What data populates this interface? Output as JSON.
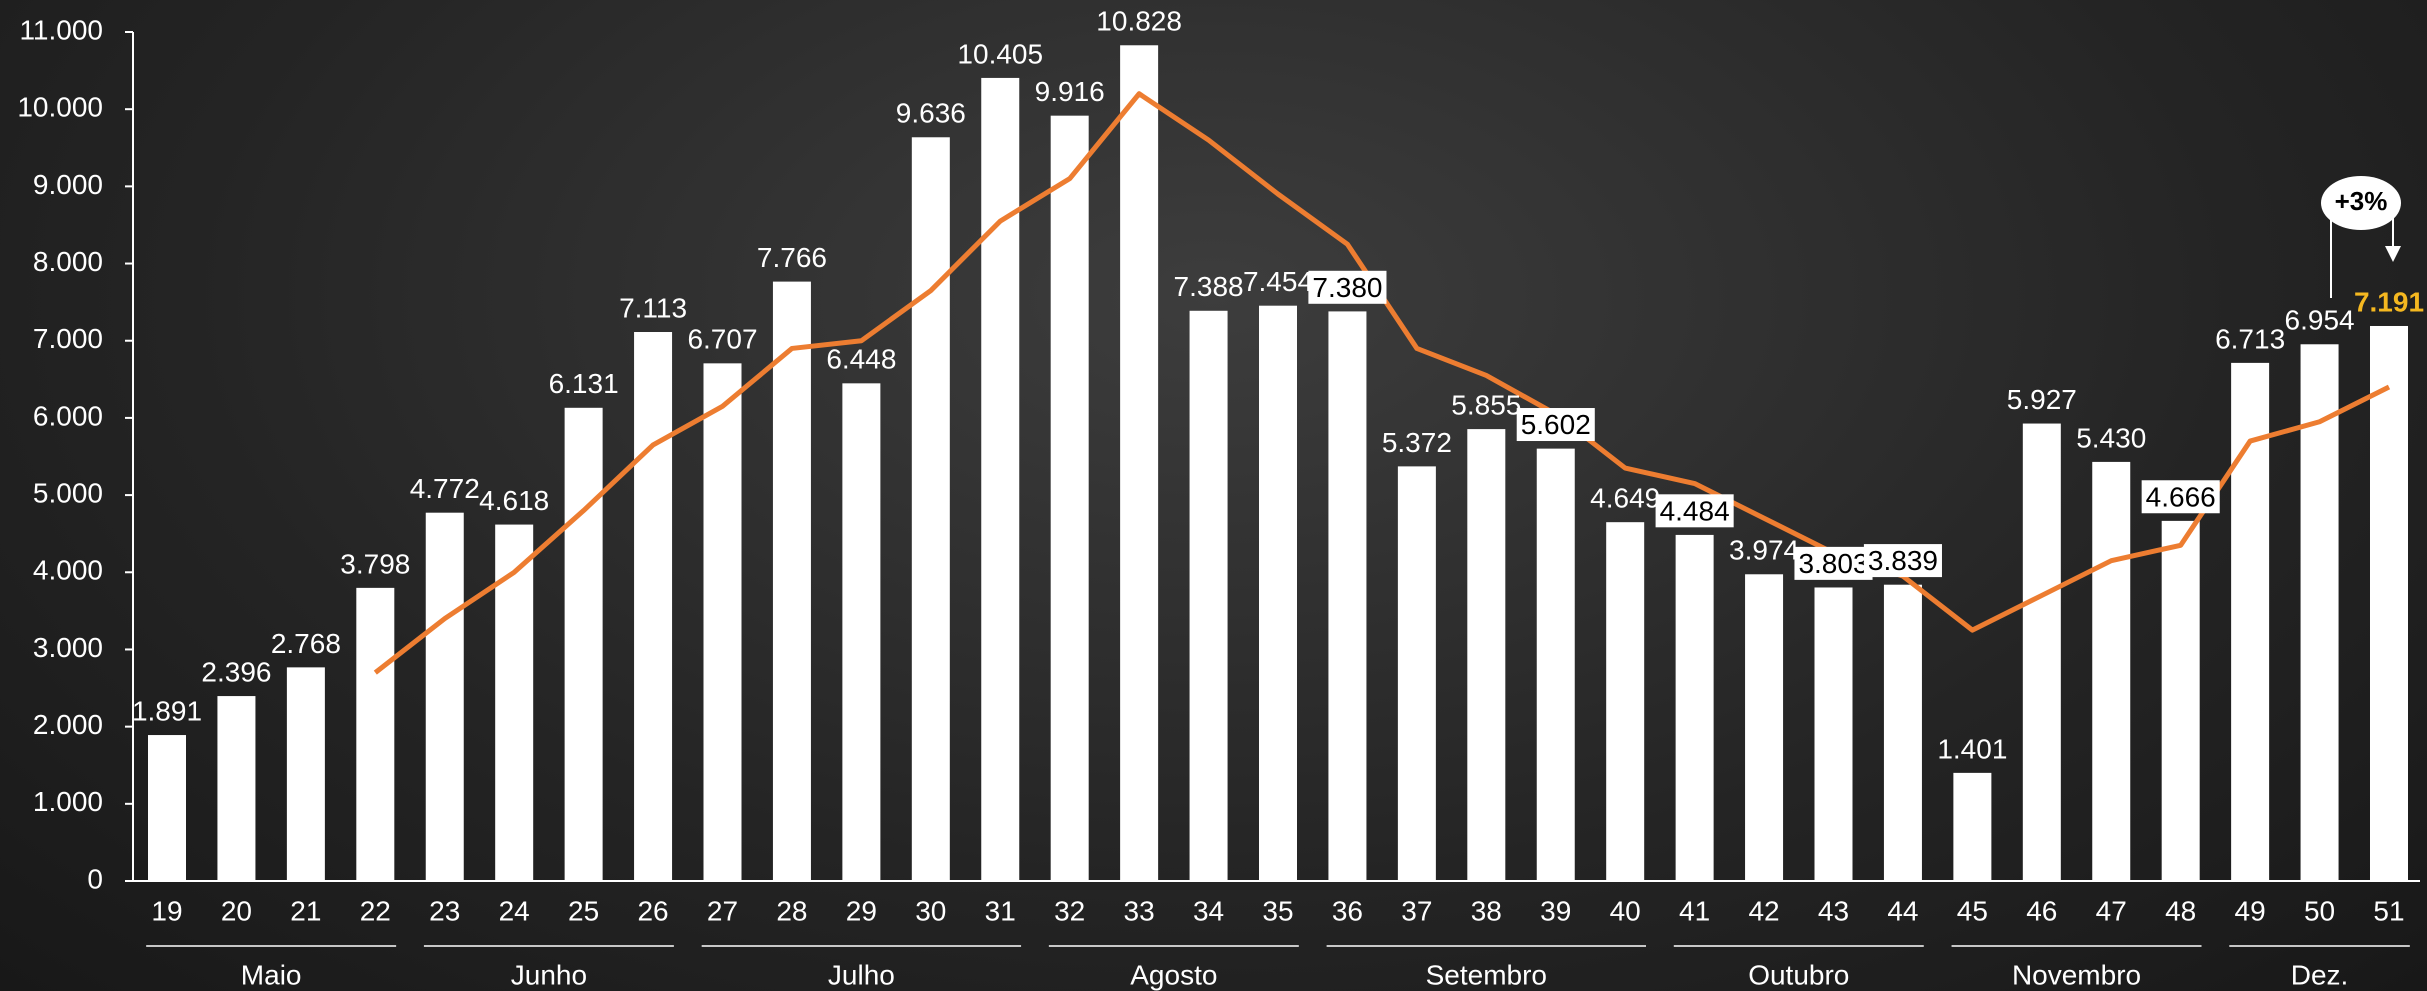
{
  "chart_data": {
    "type": "bar",
    "categories": [
      "19",
      "20",
      "21",
      "22",
      "23",
      "24",
      "25",
      "26",
      "27",
      "28",
      "29",
      "30",
      "31",
      "32",
      "33",
      "34",
      "35",
      "36",
      "37",
      "38",
      "39",
      "40",
      "41",
      "42",
      "43",
      "44",
      "45",
      "46",
      "47",
      "48",
      "49",
      "50",
      "51"
    ],
    "series": [
      {
        "type": "bar",
        "color": "#ffffff",
        "values": [
          1891,
          2396,
          2768,
          3798,
          4772,
          4618,
          6131,
          7113,
          6707,
          7766,
          6448,
          9636,
          10405,
          9916,
          10828,
          7388,
          7454,
          7380,
          5372,
          5855,
          5602,
          4649,
          4484,
          3974,
          3803,
          3839,
          1401,
          5927,
          5430,
          4666,
          6713,
          6954,
          7191
        ],
        "value_labels": [
          "1.891",
          "2.396",
          "2.768",
          "3.798",
          "4.772",
          "4.618",
          "6.131",
          "7.113",
          "6.707",
          "7.766",
          "6.448",
          "9.636",
          "10.405",
          "9.916",
          "10.828",
          "7.388",
          "7.454",
          "7.380",
          "5.372",
          "5.855",
          "5.602",
          "4.649",
          "4.484",
          "3.974",
          "3.803",
          "3.839",
          "1.401",
          "5.927",
          "5.430",
          "4.666",
          "6.713",
          "6.954",
          "7.191"
        ]
      },
      {
        "type": "line",
        "color": "#ed7d31",
        "values": [
          null,
          null,
          null,
          2700,
          3400,
          4000,
          4800,
          5650,
          6150,
          6900,
          7000,
          7650,
          8550,
          9100,
          10200,
          9600,
          8900,
          8250,
          6900,
          6550,
          6050,
          5350,
          5150,
          4700,
          4250,
          3950,
          3250,
          3700,
          4150,
          4350,
          5700,
          5950,
          6400
        ]
      }
    ],
    "groups": [
      {
        "label": "Maio",
        "from": 0,
        "to": 3
      },
      {
        "label": "Junho",
        "from": 4,
        "to": 7
      },
      {
        "label": "Julho",
        "from": 8,
        "to": 12
      },
      {
        "label": "Agosto",
        "from": 13,
        "to": 16
      },
      {
        "label": "Setembro",
        "from": 17,
        "to": 21
      },
      {
        "label": "Outubro",
        "from": 22,
        "to": 25
      },
      {
        "label": "Novembro",
        "from": 26,
        "to": 29
      },
      {
        "label": "Dez.",
        "from": 30,
        "to": 32
      }
    ],
    "boxed_labels": [
      17,
      20,
      22,
      24,
      25,
      29
    ],
    "annotation": {
      "text": "+3%",
      "index": 32,
      "color": "#f5b820"
    },
    "ylim": [
      0,
      11000
    ],
    "yticks": [
      {
        "value": 0,
        "label": "0"
      },
      {
        "value": 1000,
        "label": "1.000"
      },
      {
        "value": 2000,
        "label": "2.000"
      },
      {
        "value": 3000,
        "label": "3.000"
      },
      {
        "value": 4000,
        "label": "4.000"
      },
      {
        "value": 5000,
        "label": "5.000"
      },
      {
        "value": 6000,
        "label": "6.000"
      },
      {
        "value": 7000,
        "label": "7.000"
      },
      {
        "value": 8000,
        "label": "8.000"
      },
      {
        "value": 9000,
        "label": "9.000"
      },
      {
        "value": 10000,
        "label": "10.000"
      },
      {
        "value": 11000,
        "label": "11.000"
      }
    ]
  }
}
